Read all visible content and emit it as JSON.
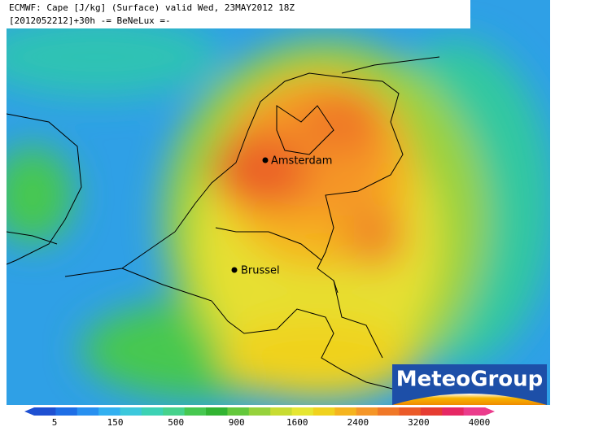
{
  "header": {
    "line1": "ECMWF: Cape [J/kg] (Surface) valid Wed, 23MAY2012 18Z",
    "line2": "[2012052212]+30h -= BeNeLux =-"
  },
  "cities": [
    {
      "label": "Amsterdam"
    },
    {
      "label": "Brussel"
    }
  ],
  "logo": {
    "text": "MeteoGroup"
  },
  "legend": {
    "labels": [
      "5",
      "150",
      "500",
      "900",
      "1600",
      "2400",
      "3200",
      "4000"
    ],
    "colors": [
      "#1e50d2",
      "#1e6ee6",
      "#2890f0",
      "#32b0f0",
      "#3cc8dc",
      "#3cd2b4",
      "#46d28c",
      "#46c850",
      "#32b432",
      "#64c83c",
      "#96d23c",
      "#c8dc32",
      "#e6e632",
      "#f0d21e",
      "#f5b41e",
      "#f59628",
      "#f07828",
      "#eb5a28",
      "#e63c32",
      "#e62864",
      "#eb3c8c"
    ]
  }
}
